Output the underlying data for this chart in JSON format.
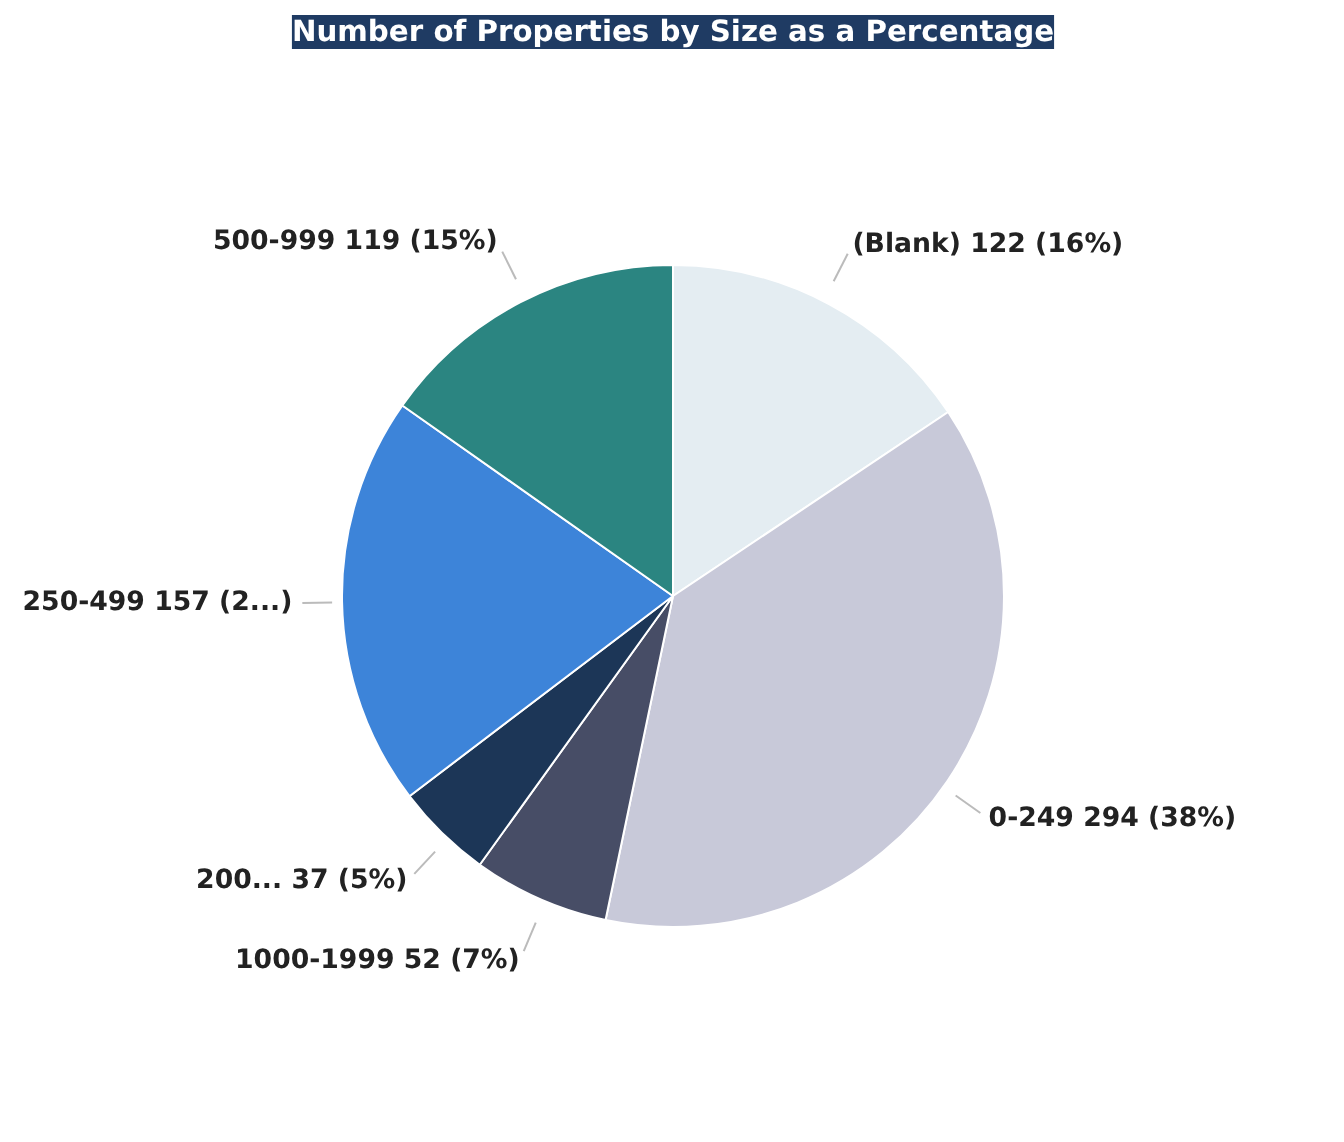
{
  "chart_data": {
    "type": "pie",
    "title": "Number of Properties by Size as a Percentage",
    "categories": [
      "(Blank)",
      "0-249",
      "1000-1999",
      "200...",
      "250-499",
      "500-999"
    ],
    "values": [
      122,
      294,
      52,
      37,
      157,
      119
    ],
    "value_labels": [
      "122 (16%)",
      "294 (38%)",
      "52 (7%)",
      "37 (5%)",
      "157 (2...)",
      "119 (15%)"
    ],
    "colors": [
      "#e4edf2",
      "#c8c9d9",
      "#474d66",
      "#1c3657",
      "#3d84d9",
      "#2b8581"
    ]
  }
}
